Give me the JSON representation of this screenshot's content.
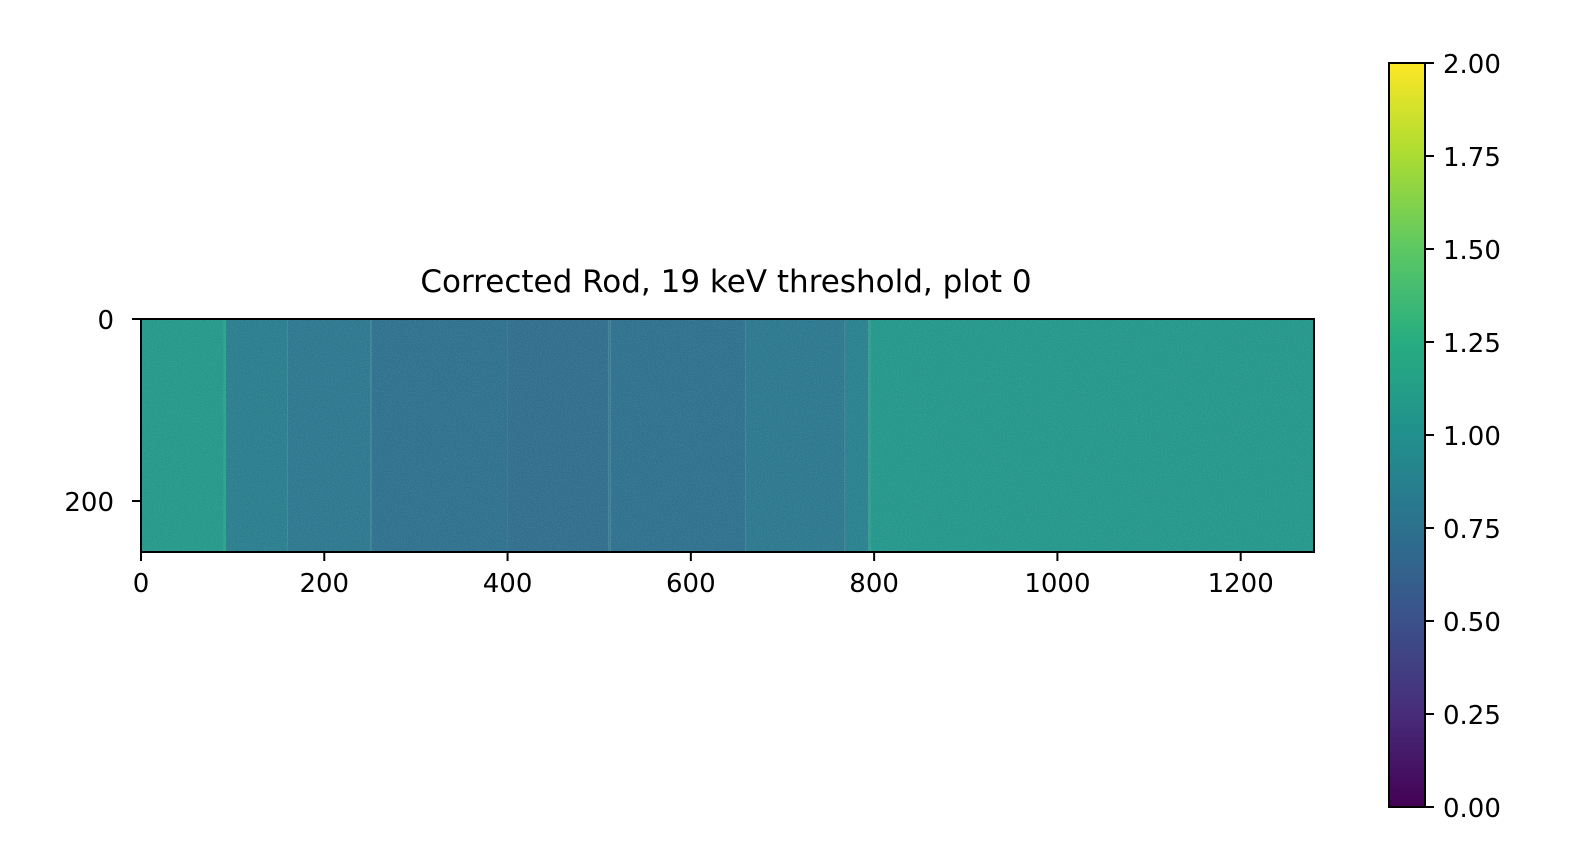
{
  "chart_data": {
    "type": "heatmap",
    "title": "Corrected Rod, 19 keV threshold, plot 0",
    "xlabel": "",
    "ylabel": "",
    "xlim": [
      0,
      1280
    ],
    "ylim": [
      256,
      0
    ],
    "x_ticks": [
      0,
      200,
      400,
      600,
      800,
      1000,
      1200
    ],
    "x_tick_labels": [
      "0",
      "200",
      "400",
      "600",
      "800",
      "1000",
      "1200"
    ],
    "y_ticks": [
      0,
      200
    ],
    "y_tick_labels": [
      "0",
      "200"
    ],
    "colormap": "viridis",
    "colorbar": {
      "range": [
        0.0,
        2.0
      ],
      "ticks": [
        0.0,
        0.25,
        0.5,
        0.75,
        1.0,
        1.25,
        1.5,
        1.75,
        2.0
      ],
      "tick_labels": [
        "0.00",
        "0.25",
        "0.50",
        "0.75",
        "1.00",
        "1.25",
        "1.50",
        "1.75",
        "2.00"
      ]
    },
    "column_profile": [
      {
        "x_start": 0,
        "x_end": 90,
        "value": 1.06
      },
      {
        "x_start": 90,
        "x_end": 92,
        "value": 1.18
      },
      {
        "x_start": 92,
        "x_end": 160,
        "value": 0.84
      },
      {
        "x_start": 160,
        "x_end": 250,
        "value": 0.78
      },
      {
        "x_start": 250,
        "x_end": 252,
        "value": 0.83
      },
      {
        "x_start": 252,
        "x_end": 400,
        "value": 0.73
      },
      {
        "x_start": 400,
        "x_end": 510,
        "value": 0.7
      },
      {
        "x_start": 510,
        "x_end": 512,
        "value": 0.8
      },
      {
        "x_start": 512,
        "x_end": 660,
        "value": 0.73
      },
      {
        "x_start": 660,
        "x_end": 766,
        "value": 0.79
      },
      {
        "x_start": 766,
        "x_end": 768,
        "value": 0.7
      },
      {
        "x_start": 768,
        "x_end": 794,
        "value": 0.86
      },
      {
        "x_start": 794,
        "x_end": 796,
        "value": 1.15
      },
      {
        "x_start": 796,
        "x_end": 1280,
        "value": 1.04
      }
    ]
  }
}
